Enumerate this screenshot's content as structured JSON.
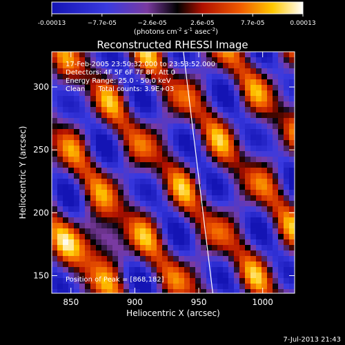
{
  "chart_data": {
    "type": "heatmap",
    "title": "Reconstructed RHESSI Image",
    "xlabel": "Heliocentric X (arcsec)",
    "ylabel": "Heliocentric Y (arcsec)",
    "xlim": [
      835,
      1025
    ],
    "ylim": [
      136,
      328
    ],
    "x_ticks": [
      "850",
      "900",
      "950",
      "1000"
    ],
    "x_tick_values": [
      850,
      900,
      950,
      1000
    ],
    "y_ticks": [
      "150",
      "200",
      "250",
      "300"
    ],
    "y_tick_values": [
      150,
      200,
      250,
      300
    ],
    "colorbar": {
      "tick_labels": [
        "-0.00013",
        "−7.7e-05",
        "−2.6e-05",
        "2.6e-05",
        "7.7e-05",
        "0.00013"
      ],
      "min": -0.00013,
      "max": 0.00013,
      "unit_prefix": "(photons cm",
      "unit_exp1": "-2",
      "unit_mid": " s",
      "unit_exp2": "-1",
      "unit_mid2": " asec",
      "unit_exp3": "-2",
      "unit_suffix": ")"
    },
    "annotations": [
      "17-Feb-2005 23:50:32.000 to 23:53:52.000",
      "Detectors: 4F 5F 6F 7F 8F, Att 0",
      "Energy Range: 25.0 - 50.0 keV",
      "Clean      Total counts: 3.9E+03"
    ],
    "peak_label": "Position of Peak = [868,182]",
    "peak_position": [
      868,
      182
    ],
    "limb_line": [
      [
        938,
        328
      ],
      [
        961,
        136
      ]
    ]
  },
  "footer": {
    "timestamp": "7-Jul-2013 21:43"
  }
}
